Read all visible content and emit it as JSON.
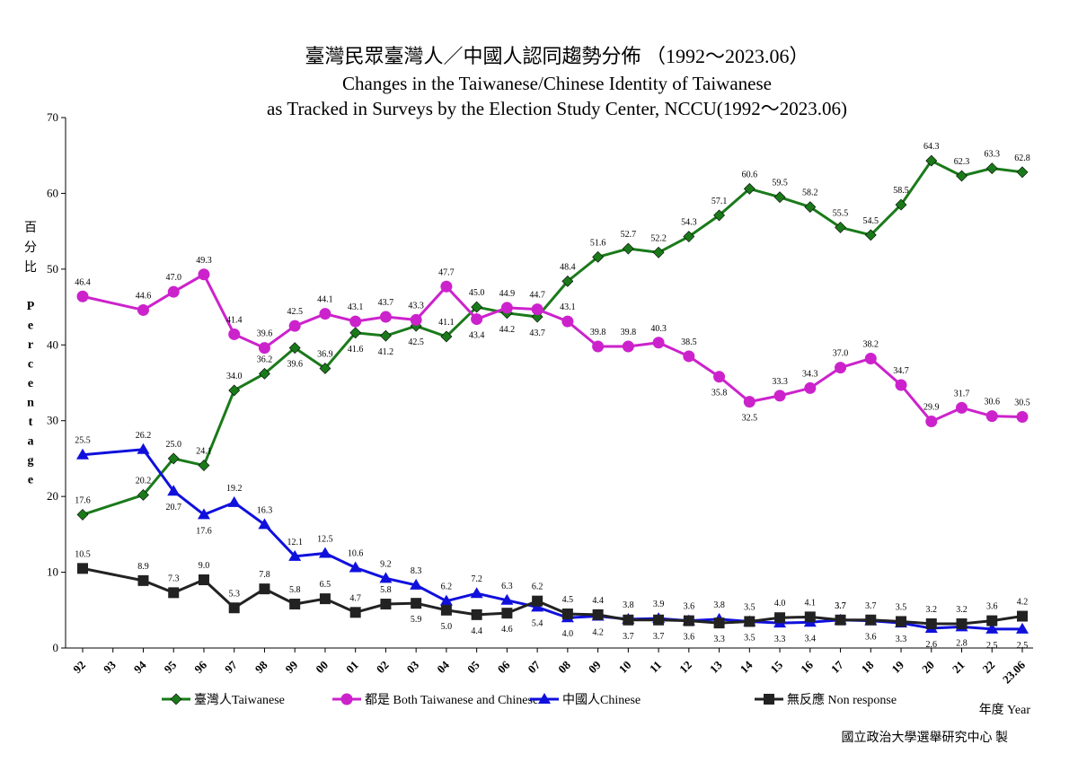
{
  "chart_data": {
    "type": "line",
    "title_cn": "臺灣民眾臺灣人／中國人認同趨勢分佈 （1992～2023.06）",
    "title_en_line1": "Changes in the Taiwanese/Chinese Identity of Taiwanese",
    "title_en_line2": "as Tracked in Surveys by the Election Study Center, NCCU(1992～2023.06)",
    "ylabel_cn": "百分比",
    "ylabel_en": "Percentage",
    "xlabel": "年度 Year",
    "source": "國立政治大學選舉研究中心 製",
    "ylim": [
      0,
      70
    ],
    "yticks": [
      0,
      10,
      20,
      30,
      40,
      50,
      60,
      70
    ],
    "categories": [
      "92",
      "93",
      "94",
      "95",
      "96",
      "97",
      "98",
      "99",
      "00",
      "01",
      "02",
      "03",
      "04",
      "05",
      "06",
      "07",
      "08",
      "09",
      "10",
      "11",
      "12",
      "13",
      "14",
      "15",
      "16",
      "17",
      "18",
      "19",
      "20",
      "21",
      "22",
      "23.06"
    ],
    "grid": false,
    "legend_position": "bottom",
    "series": [
      {
        "name": "臺灣人Taiwanese",
        "color": "#1a7a1a",
        "marker": "diamond",
        "values": [
          17.6,
          null,
          20.2,
          25.0,
          24.1,
          34.0,
          36.2,
          39.6,
          36.9,
          41.6,
          41.2,
          42.5,
          41.1,
          45.0,
          44.2,
          43.7,
          48.4,
          51.6,
          52.7,
          52.2,
          54.3,
          57.1,
          60.6,
          59.5,
          58.2,
          55.5,
          54.5,
          58.5,
          64.3,
          62.3,
          63.3,
          62.8
        ]
      },
      {
        "name": "都是 Both Taiwanese and Chinese",
        "color": "#cc22cc",
        "marker": "circle",
        "values": [
          46.4,
          null,
          44.6,
          47.0,
          49.3,
          41.4,
          39.6,
          42.5,
          44.1,
          43.1,
          43.7,
          43.3,
          47.7,
          43.4,
          44.9,
          44.7,
          43.1,
          39.8,
          39.8,
          40.3,
          38.5,
          35.8,
          32.5,
          33.3,
          34.3,
          37.0,
          38.2,
          34.7,
          29.9,
          31.7,
          30.6,
          30.5
        ]
      },
      {
        "name": "中國人Chinese",
        "color": "#1010dd",
        "marker": "triangle",
        "values": [
          25.5,
          null,
          26.2,
          20.7,
          17.6,
          19.2,
          16.3,
          12.1,
          12.5,
          10.6,
          9.2,
          8.3,
          6.2,
          7.2,
          6.3,
          5.4,
          4.0,
          4.2,
          3.8,
          3.9,
          3.6,
          3.8,
          3.5,
          3.3,
          3.4,
          3.7,
          3.6,
          3.3,
          2.6,
          2.8,
          2.5,
          2.5
        ]
      },
      {
        "name": "無反應 Non response",
        "color": "#222222",
        "marker": "square",
        "values": [
          10.5,
          null,
          8.9,
          7.3,
          9.0,
          5.3,
          7.8,
          5.8,
          6.5,
          4.7,
          5.8,
          5.9,
          5.0,
          4.4,
          4.6,
          6.2,
          4.5,
          4.4,
          3.7,
          3.7,
          3.6,
          3.3,
          3.5,
          4.0,
          4.1,
          3.7,
          3.7,
          3.5,
          3.2,
          3.2,
          3.6,
          4.2
        ]
      }
    ]
  }
}
